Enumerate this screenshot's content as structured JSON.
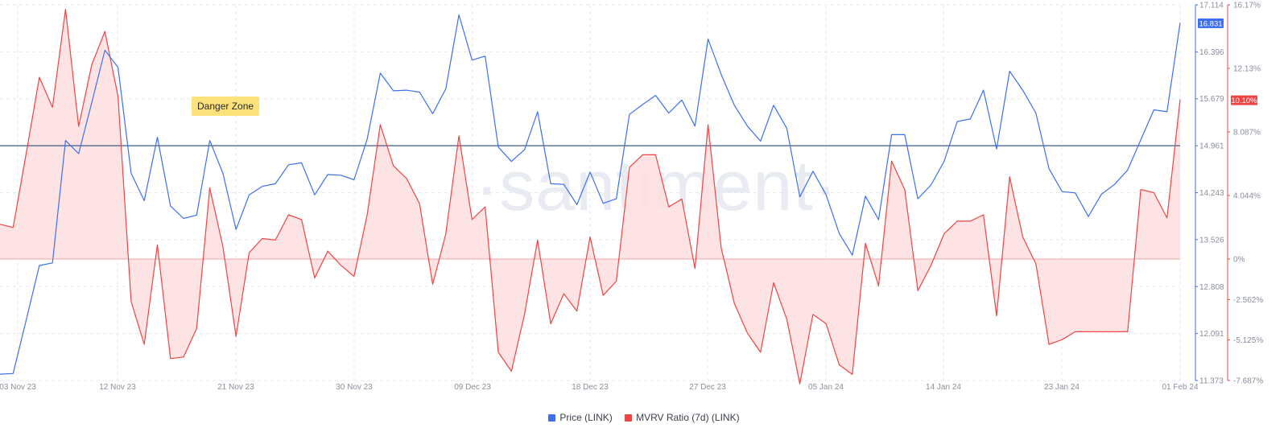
{
  "watermark": "·santiment·",
  "annotation": "Danger Zone",
  "chart_data": {
    "type": "line",
    "x_labels": [
      "03 Nov 23",
      "12 Nov 23",
      "21 Nov 23",
      "30 Nov 23",
      "09 Dec 23",
      "18 Dec 23",
      "27 Dec 23",
      "05 Jan 24",
      "14 Jan 24",
      "23 Jan 24",
      "01 Feb 24"
    ],
    "y_left": {
      "ticks": [
        "17.114",
        "16.396",
        "15.679",
        "14.961",
        "14.243",
        "13.526",
        "12.808",
        "12.091",
        "11.373"
      ],
      "range": [
        11.373,
        17.114
      ]
    },
    "y_right": {
      "ticks": [
        "16.17%",
        "12.13%",
        "8.087%",
        "4.044%",
        "0%",
        "-2.562%",
        "-5.125%",
        "-7.687%"
      ]
    },
    "reference_line_price": 14.961,
    "current_price_label": "16.831",
    "current_mvrv_label": "10.10%",
    "series": [
      {
        "name": "Price (LINK)",
        "color": "#3d6ff2",
        "values": [
          11.47,
          11.48,
          12.3,
          13.13,
          13.17,
          15.04,
          14.84,
          15.62,
          16.42,
          16.16,
          14.54,
          14.12,
          15.09,
          14.04,
          13.85,
          13.9,
          15.04,
          14.54,
          13.68,
          14.21,
          14.34,
          14.38,
          14.67,
          14.7,
          14.21,
          14.52,
          14.51,
          14.44,
          15.06,
          16.07,
          15.8,
          15.81,
          15.78,
          15.45,
          15.83,
          16.96,
          16.27,
          16.33,
          14.94,
          14.72,
          14.9,
          15.48,
          14.38,
          14.37,
          14.06,
          14.56,
          14.08,
          14.15,
          15.44,
          15.59,
          15.73,
          15.46,
          15.66,
          15.26,
          16.59,
          16.05,
          15.58,
          15.26,
          15.03,
          15.58,
          15.23,
          14.18,
          14.57,
          14.21,
          13.62,
          13.29,
          14.19,
          13.83,
          15.13,
          15.13,
          14.15,
          14.36,
          14.72,
          15.33,
          15.37,
          15.81,
          14.91,
          16.1,
          15.81,
          15.46,
          14.61,
          14.26,
          14.24,
          13.88,
          14.22,
          14.37,
          14.59,
          15.05,
          15.51,
          15.48,
          16.84
        ]
      },
      {
        "name": "MVRV Ratio (7d) (LINK)",
        "color": "#ef4444",
        "values": [
          2.2,
          2.0,
          6.7,
          11.5,
          9.6,
          15.8,
          8.4,
          12.3,
          14.4,
          10.3,
          -2.7,
          -5.4,
          0.9,
          -6.3,
          -6.2,
          -4.4,
          4.5,
          0.8,
          -4.9,
          0.4,
          1.3,
          1.2,
          2.8,
          2.5,
          -1.2,
          0.5,
          -0.4,
          -1.1,
          2.8,
          8.5,
          5.9,
          5.1,
          3.5,
          -1.6,
          1.6,
          7.8,
          2.5,
          3.3,
          -5.9,
          -7.1,
          -3.5,
          1.2,
          -4.1,
          -2.2,
          -3.3,
          1.4,
          -2.3,
          -1.4,
          5.8,
          6.6,
          6.6,
          3.3,
          3.8,
          -0.6,
          8.5,
          0.7,
          -2.8,
          -4.7,
          -5.9,
          -1.5,
          -3.8,
          -7.9,
          -3.5,
          -4.1,
          -6.7,
          -7.3,
          1.0,
          -1.7,
          6.2,
          4.4,
          -2.0,
          -0.4,
          1.6,
          2.4,
          2.4,
          2.8,
          -3.6,
          5.2,
          1.4,
          -0.3,
          -5.4,
          -5.1,
          -4.6,
          -4.6,
          -4.6,
          -4.6,
          -4.6,
          4.4,
          4.2,
          2.6,
          10.1
        ]
      }
    ],
    "legend": [
      "Price (LINK)",
      "MVRV Ratio (7d) (LINK)"
    ]
  }
}
